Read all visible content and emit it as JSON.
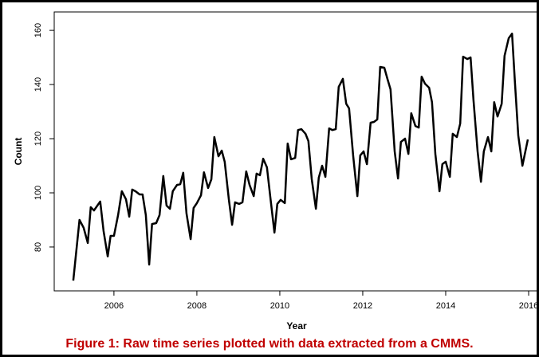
{
  "chart_data": {
    "type": "line",
    "xlabel": "Year",
    "ylabel": "Count",
    "caption": "Figure 1: Raw time series plotted with data extracted from a CMMS.",
    "x": [
      2005.02,
      2005.17,
      2005.27,
      2005.37,
      2005.44,
      2005.52,
      2005.6,
      2005.67,
      2005.75,
      2005.85,
      2005.92,
      2006.0,
      2006.1,
      2006.19,
      2006.29,
      2006.37,
      2006.44,
      2006.52,
      2006.62,
      2006.69,
      2006.77,
      2006.85,
      2006.92,
      2007.02,
      2007.1,
      2007.19,
      2007.27,
      2007.35,
      2007.42,
      2007.52,
      2007.6,
      2007.67,
      2007.75,
      2007.85,
      2007.92,
      2008.0,
      2008.1,
      2008.17,
      2008.27,
      2008.35,
      2008.42,
      2008.52,
      2008.6,
      2008.67,
      2008.77,
      2008.85,
      2008.92,
      2009.02,
      2009.1,
      2009.19,
      2009.27,
      2009.37,
      2009.44,
      2009.52,
      2009.6,
      2009.69,
      2009.77,
      2009.87,
      2009.94,
      2010.02,
      2010.12,
      2010.19,
      2010.27,
      2010.37,
      2010.44,
      2010.52,
      2010.62,
      2010.69,
      2010.77,
      2010.87,
      2010.94,
      2011.02,
      2011.1,
      2011.19,
      2011.27,
      2011.35,
      2011.42,
      2011.52,
      2011.6,
      2011.67,
      2011.77,
      2011.87,
      2011.94,
      2012.02,
      2012.1,
      2012.19,
      2012.27,
      2012.35,
      2012.42,
      2012.52,
      2012.6,
      2012.67,
      2012.77,
      2012.85,
      2012.92,
      2013.02,
      2013.1,
      2013.17,
      2013.27,
      2013.35,
      2013.42,
      2013.5,
      2013.6,
      2013.67,
      2013.75,
      2013.85,
      2013.92,
      2014.0,
      2014.1,
      2014.17,
      2014.27,
      2014.35,
      2014.42,
      2014.52,
      2014.6,
      2014.67,
      2014.77,
      2014.85,
      2014.92,
      2015.02,
      2015.1,
      2015.17,
      2015.25,
      2015.35,
      2015.42,
      2015.52,
      2015.6,
      2015.67,
      2015.75,
      2015.85,
      2015.98
    ],
    "series": [
      {
        "color": "#000000",
        "values": [
          67.6,
          90.0,
          87.1,
          81.5,
          94.7,
          93.5,
          95.3,
          96.8,
          85.9,
          76.5,
          84.1,
          84.1,
          91.8,
          100.6,
          97.6,
          91.2,
          101.2,
          100.6,
          99.4,
          99.4,
          91.8,
          73.5,
          88.5,
          88.8,
          91.8,
          106.2,
          95.3,
          94.1,
          100.6,
          102.9,
          103.2,
          107.4,
          92.4,
          82.9,
          94.4,
          96.2,
          99.1,
          107.6,
          101.8,
          105.0,
          120.6,
          113.5,
          115.6,
          111.5,
          97.6,
          88.2,
          96.5,
          95.9,
          96.5,
          107.9,
          102.9,
          98.8,
          107.1,
          106.5,
          112.6,
          109.4,
          98.5,
          85.3,
          95.9,
          97.4,
          96.2,
          118.2,
          112.4,
          112.9,
          123.2,
          123.5,
          121.8,
          119.1,
          105.0,
          94.1,
          105.6,
          110.0,
          105.9,
          123.8,
          123.2,
          123.5,
          139.1,
          142.1,
          132.9,
          131.2,
          113.5,
          98.8,
          113.8,
          115.3,
          110.6,
          125.9,
          126.2,
          127.1,
          146.5,
          146.2,
          141.8,
          138.2,
          115.3,
          105.3,
          118.8,
          120.0,
          114.4,
          129.4,
          124.7,
          124.1,
          142.9,
          140.3,
          138.8,
          133.5,
          114.4,
          100.6,
          110.6,
          111.5,
          105.9,
          121.8,
          120.6,
          125.6,
          150.3,
          149.4,
          150.0,
          134.4,
          115.3,
          104.1,
          115.3,
          120.6,
          115.3,
          133.5,
          128.2,
          132.9,
          150.6,
          157.1,
          158.8,
          140.9,
          121.2,
          110.0,
          119.7
        ]
      }
    ],
    "xlim": [
      2004.56,
      2016.25
    ],
    "xticks": [
      2006,
      2008,
      2010,
      2012,
      2014,
      2016
    ],
    "ylim": [
      63.8,
      166.8
    ],
    "yticks": [
      80,
      100,
      120,
      140,
      160
    ]
  }
}
